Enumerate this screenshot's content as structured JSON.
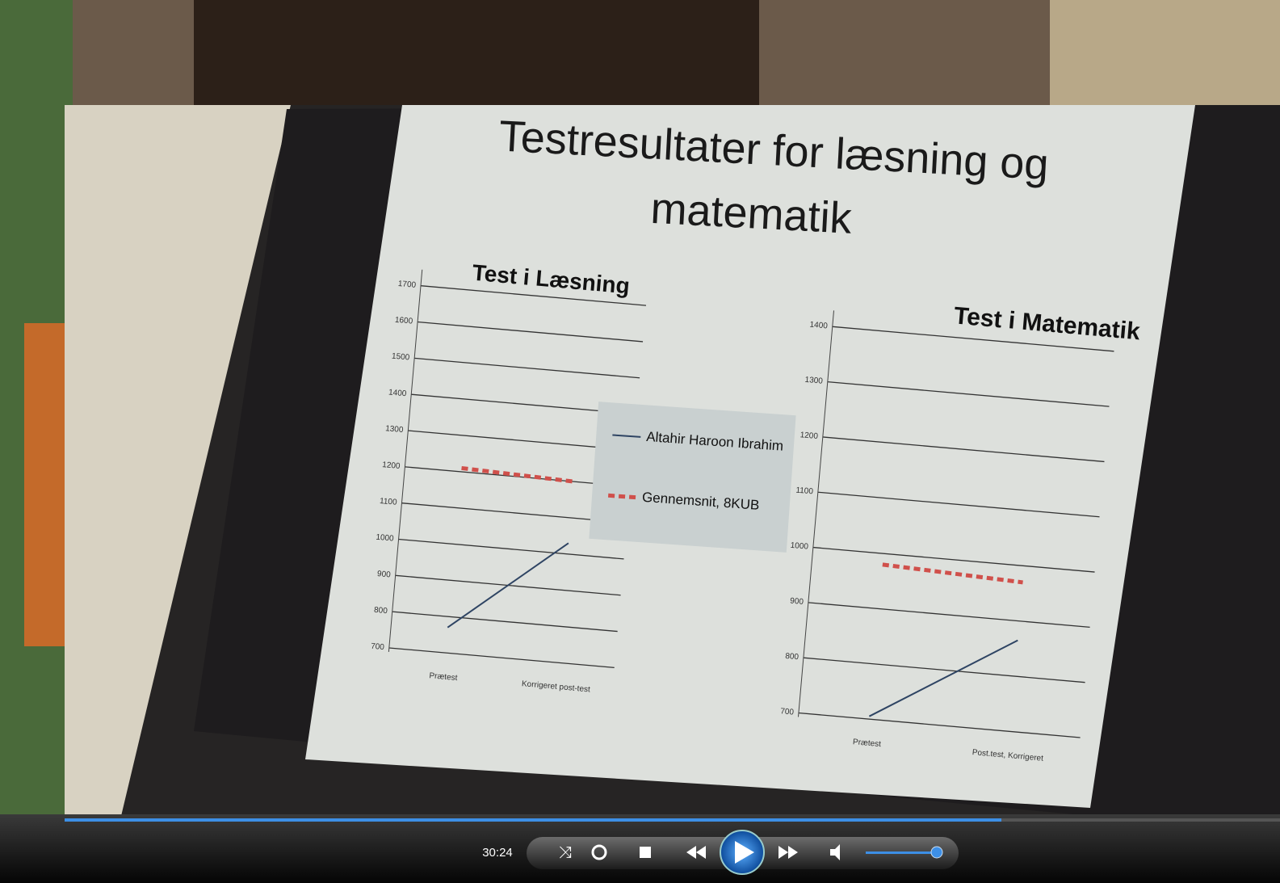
{
  "slide": {
    "title_lines": [
      "Testresultater for læsning og",
      "matematik"
    ]
  },
  "chart_data": [
    {
      "type": "line",
      "title": "Test i Læsning",
      "categories": [
        "Prætest",
        "Korrigeret post-test"
      ],
      "series": [
        {
          "name": "Altahir Haroon Ibrahim",
          "color": "#2e4463",
          "values": [
            770,
            1030
          ]
        },
        {
          "name": "Gennemsnit, 8KUB",
          "color": "#d0504b",
          "dashed": true,
          "values": [
            1210,
            1200
          ]
        }
      ],
      "ylim": [
        700,
        1700
      ],
      "yticks": [
        700,
        800,
        900,
        1000,
        1100,
        1200,
        1300,
        1400,
        1500,
        1600,
        1700
      ],
      "grid": true
    },
    {
      "type": "line",
      "title": "Test i Matematik",
      "categories": [
        "Prætest",
        "Post.test, Korrigeret"
      ],
      "series": [
        {
          "color": "#2e4463",
          "values": [
            705,
            865
          ]
        },
        {
          "color": "#d0504b",
          "dashed": true,
          "values": [
            980,
            970
          ]
        }
      ],
      "ylim": [
        700,
        1400
      ],
      "yticks": [
        700,
        800,
        900,
        1000,
        1100,
        1200,
        1300,
        1400
      ],
      "grid": true
    }
  ],
  "player": {
    "time": "30:24"
  }
}
